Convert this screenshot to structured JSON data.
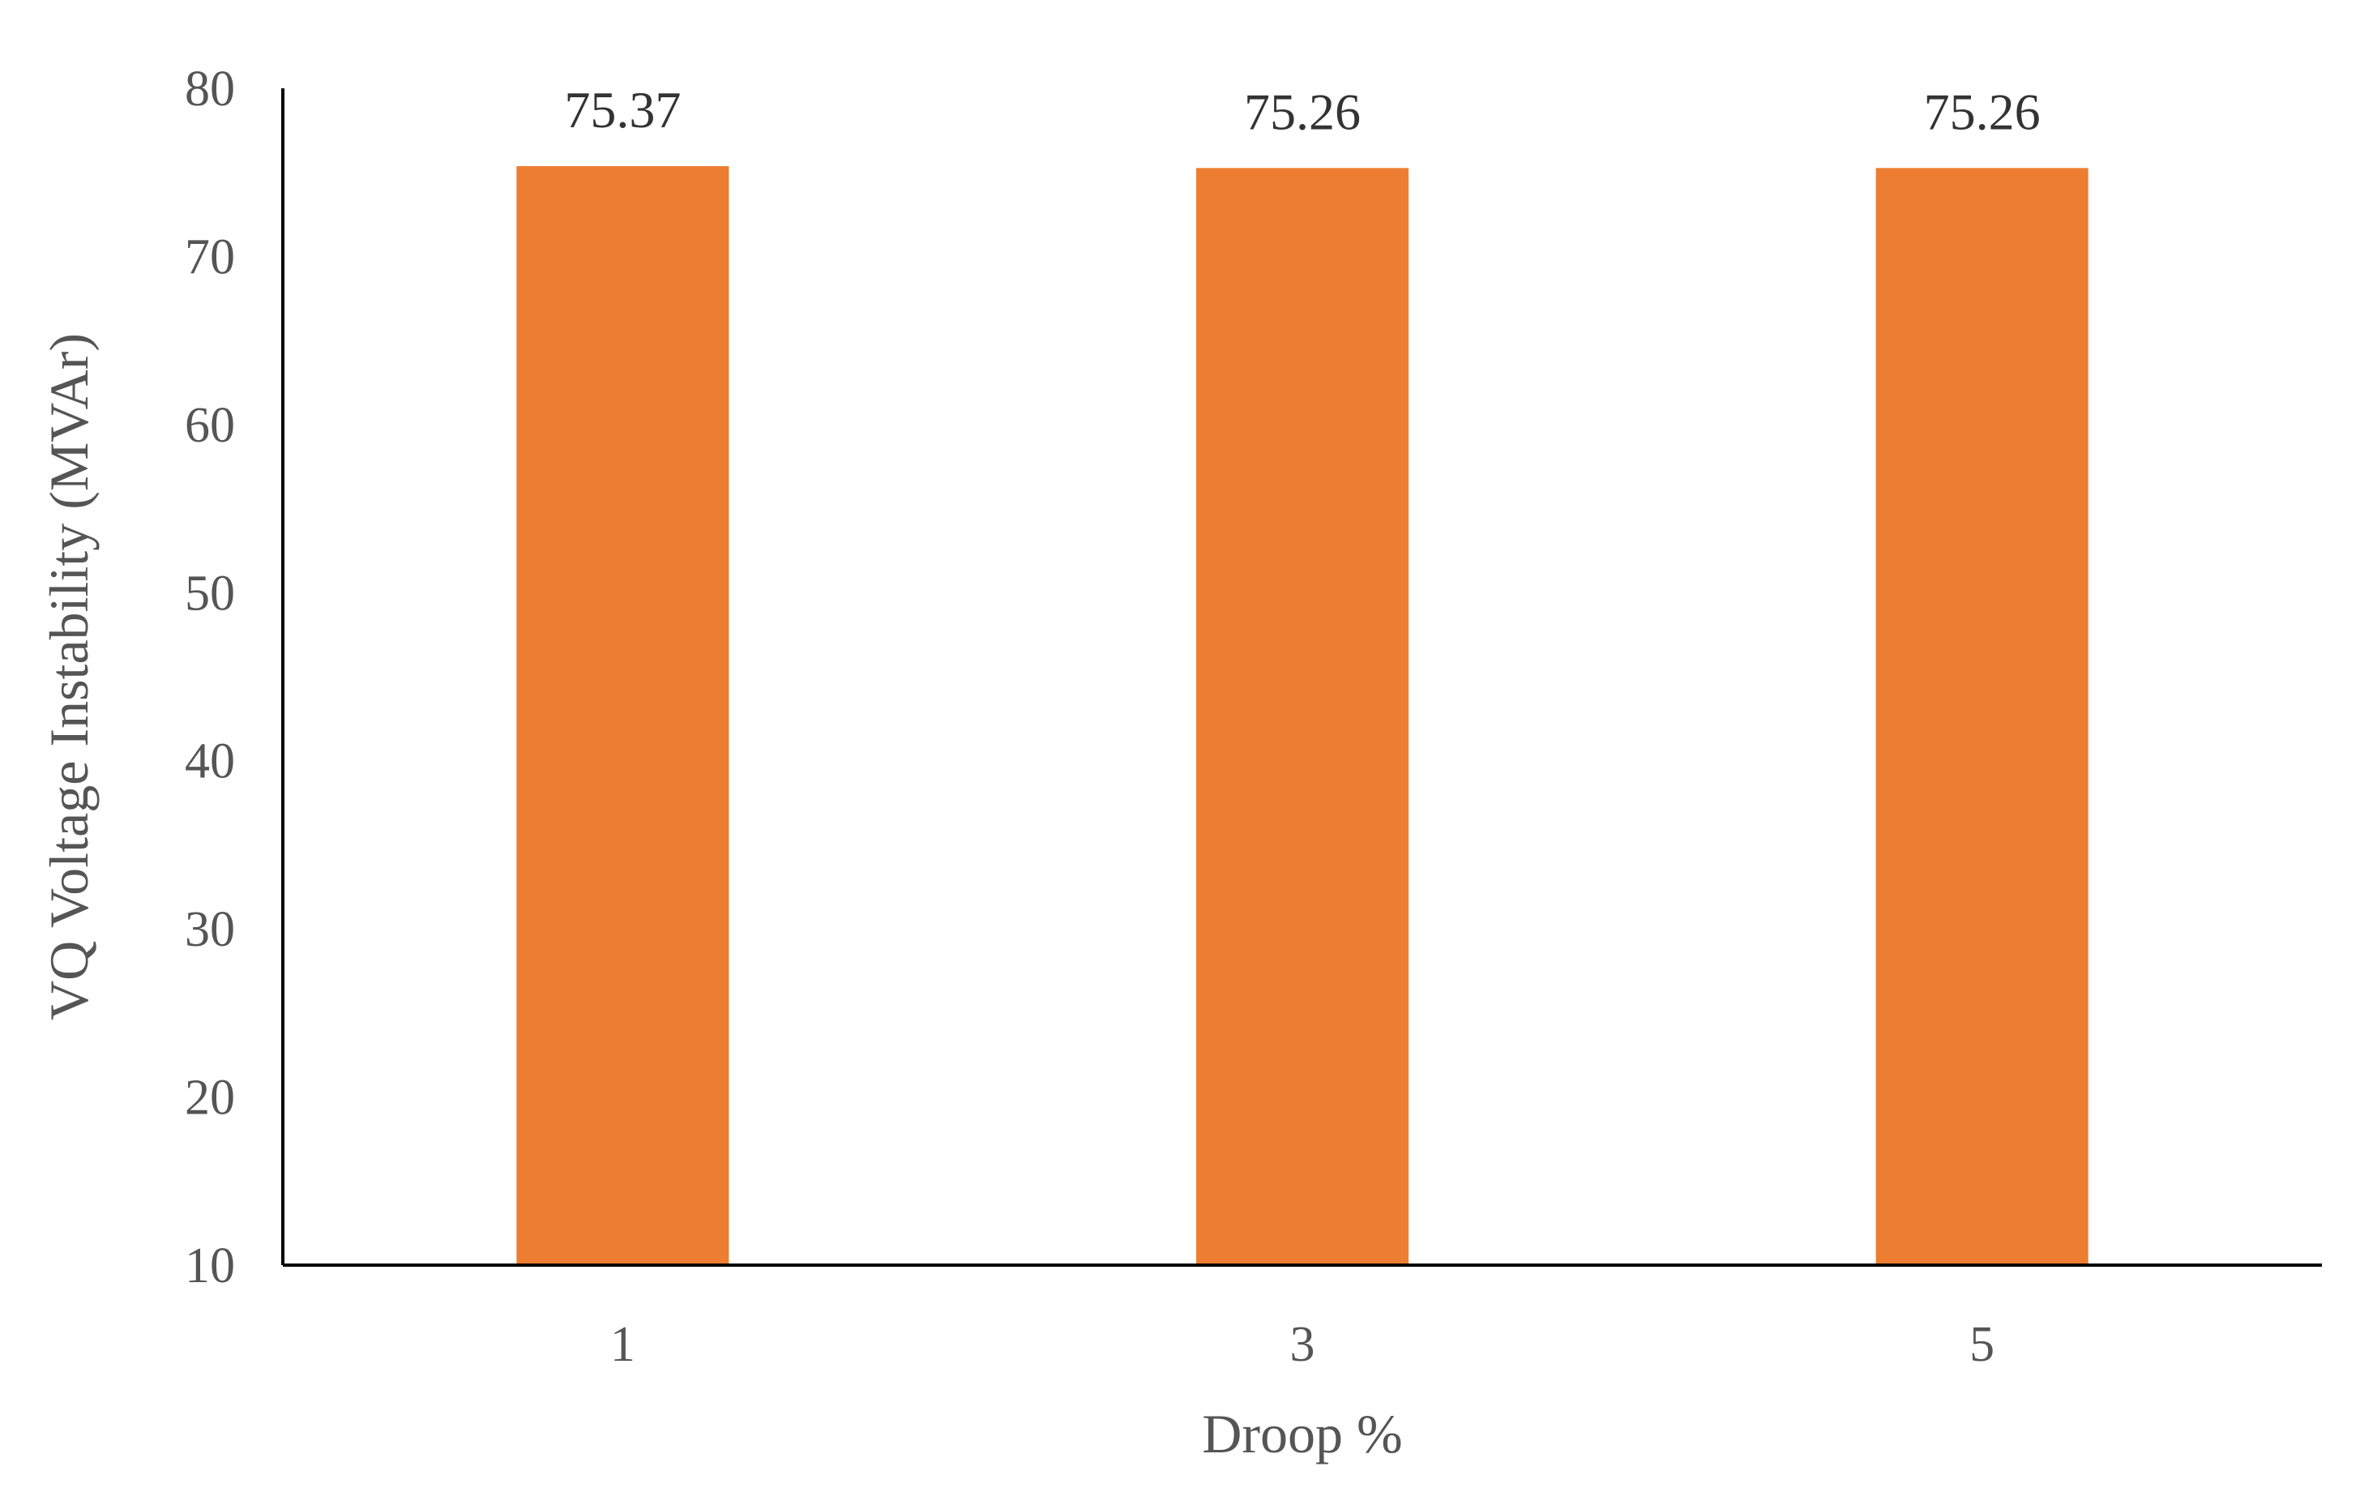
{
  "chart_data": {
    "type": "bar",
    "categories": [
      "1",
      "3",
      "5"
    ],
    "values": [
      75.37,
      75.26,
      75.26
    ],
    "data_labels": [
      "75.37",
      "75.26",
      "75.26"
    ],
    "title": "",
    "xlabel": "Droop %",
    "ylabel": "VQ Voltage Instability (MVAr)",
    "ylim": [
      10,
      80
    ],
    "yticks": [
      10,
      20,
      30,
      40,
      50,
      60,
      70,
      80
    ],
    "grid": false,
    "legend": "none",
    "bar_color": "#ED7D31"
  }
}
